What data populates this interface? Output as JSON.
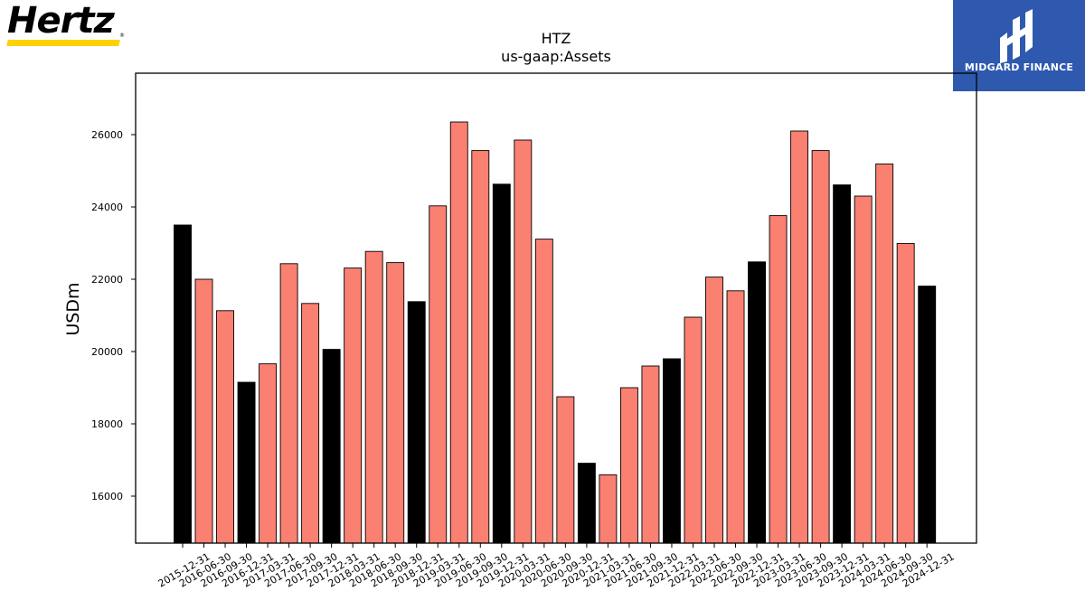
{
  "logos": {
    "left": {
      "text": "Hertz",
      "bar_color": "#FFD100",
      "reg_mark": "®"
    },
    "right": {
      "text": "MIDGARD FINANCE",
      "background": "#2E59AE"
    }
  },
  "chart_data": {
    "type": "bar",
    "title": "HTZ",
    "subtitle": "us-gaap:Assets",
    "xlabel": "",
    "ylabel": "USDm",
    "ylim": [
      14700,
      27700
    ],
    "yticks": [
      16000,
      18000,
      20000,
      22000,
      24000,
      26000
    ],
    "grid": false,
    "colors": {
      "annual": "#000000",
      "quarterly": "#FA8072",
      "edge": "#000000"
    },
    "categories": [
      "2015-12-31",
      "2016-06-30",
      "2016-09-30",
      "2016-12-31",
      "2017-03-31",
      "2017-06-30",
      "2017-09-30",
      "2017-12-31",
      "2018-03-31",
      "2018-06-30",
      "2018-09-30",
      "2018-12-31",
      "2019-03-31",
      "2019-06-30",
      "2019-09-30",
      "2019-12-31",
      "2020-03-31",
      "2020-06-30",
      "2020-09-30",
      "2020-12-31",
      "2021-03-31",
      "2021-06-30",
      "2021-09-30",
      "2021-12-31",
      "2022-03-31",
      "2022-06-30",
      "2022-09-30",
      "2022-12-31",
      "2023-03-31",
      "2023-06-30",
      "2023-09-30",
      "2023-12-31",
      "2024-03-31",
      "2024-06-30",
      "2024-09-30",
      "2024-12-31"
    ],
    "values": [
      23500,
      22000,
      21130,
      19150,
      19660,
      22430,
      21330,
      20060,
      22310,
      22770,
      22460,
      21380,
      24030,
      26350,
      25560,
      24630,
      25850,
      23110,
      18750,
      16910,
      16590,
      19000,
      19600,
      19800,
      20950,
      22060,
      21680,
      22480,
      23760,
      26100,
      25560,
      24610,
      24300,
      25190,
      22990,
      21810
    ],
    "is_annual": [
      true,
      false,
      false,
      true,
      false,
      false,
      false,
      true,
      false,
      false,
      false,
      true,
      false,
      false,
      false,
      true,
      false,
      false,
      false,
      true,
      false,
      false,
      false,
      true,
      false,
      false,
      false,
      true,
      false,
      false,
      false,
      true,
      false,
      false,
      false,
      true
    ]
  }
}
